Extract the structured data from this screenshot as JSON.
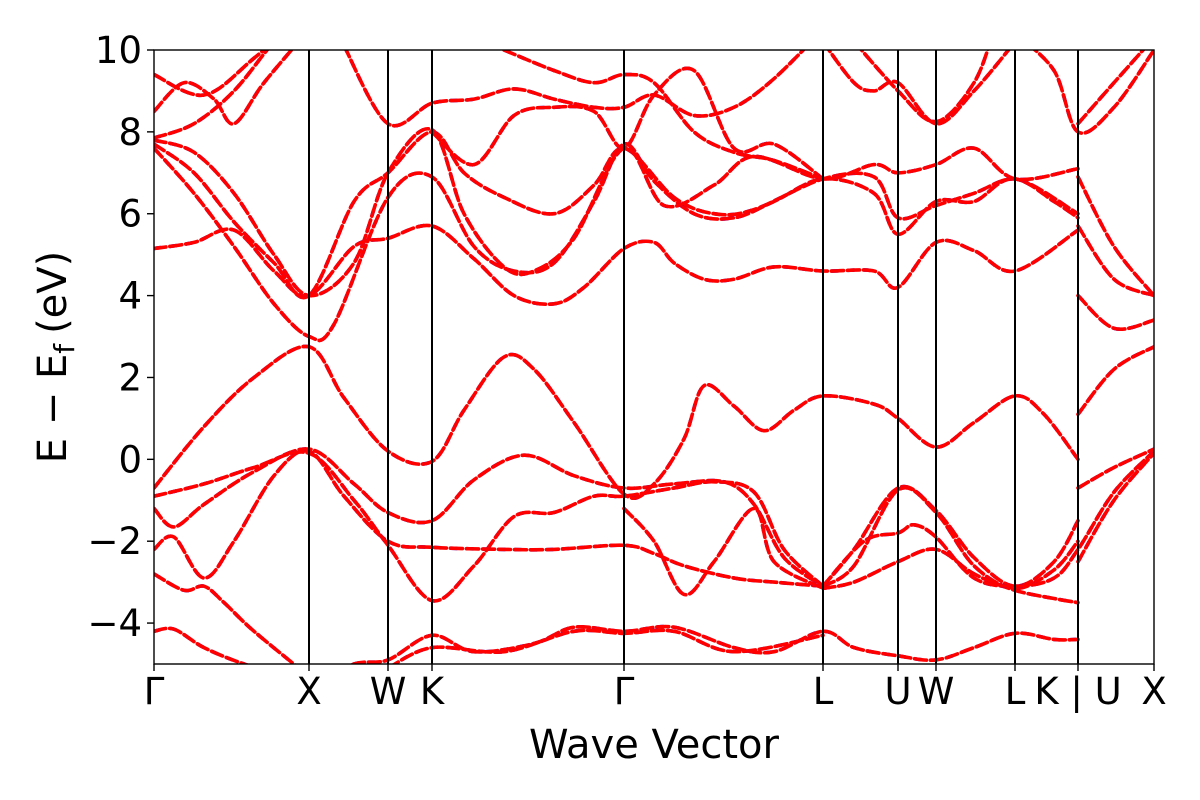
{
  "chart_data": {
    "type": "line",
    "xlabel": "Wave Vector",
    "ylabel_main": "E − E",
    "ylabel_sub": "f",
    "ylabel_unit": "(eV)",
    "ylim": [
      -5,
      10
    ],
    "yticks": [
      {
        "value": -4,
        "label": "−4"
      },
      {
        "value": -2,
        "label": "−2"
      },
      {
        "value": 0,
        "label": "0"
      },
      {
        "value": 2,
        "label": "2"
      },
      {
        "value": 4,
        "label": "4"
      },
      {
        "value": 6,
        "label": "6"
      },
      {
        "value": 8,
        "label": "8"
      },
      {
        "value": 10,
        "label": "10"
      }
    ],
    "xlim": [
      0,
      1
    ],
    "high_symmetry_points": [
      {
        "pos": 0.0,
        "label": "Γ"
      },
      {
        "pos": 0.155,
        "label": "X"
      },
      {
        "pos": 0.234,
        "label": "W"
      },
      {
        "pos": 0.278,
        "label": "K"
      },
      {
        "pos": 0.47,
        "label": "Γ"
      },
      {
        "pos": 0.669,
        "label": "L"
      },
      {
        "pos": 0.744,
        "label": "U"
      },
      {
        "pos": 0.782,
        "label": "W"
      },
      {
        "pos": 0.861,
        "label": "L"
      },
      {
        "pos": 0.924,
        "label": "K | U"
      },
      {
        "pos": 1.0,
        "label": "X"
      }
    ],
    "series_colors": {
      "solid": "#ff0000",
      "dashed": "#0000ff"
    },
    "bands": [
      [
        [
          0,
          -4.2
        ],
        [
          0.02,
          -4.15
        ],
        [
          0.05,
          -4.6
        ],
        [
          0.09,
          -5.0
        ],
        [
          0.155,
          -5.5
        ]
      ],
      [
        [
          0,
          -2.8
        ],
        [
          0.03,
          -3.2
        ],
        [
          0.05,
          -3.1
        ],
        [
          0.07,
          -3.5
        ],
        [
          0.1,
          -4.2
        ],
        [
          0.155,
          -5.3
        ]
      ],
      [
        [
          0,
          -2.2
        ],
        [
          0.02,
          -1.9
        ],
        [
          0.05,
          -2.9
        ],
        [
          0.08,
          -2.0
        ],
        [
          0.12,
          -0.4
        ],
        [
          0.155,
          0.2
        ],
        [
          0.19,
          -0.9
        ],
        [
          0.234,
          -2.0
        ],
        [
          0.278,
          -2.15
        ],
        [
          0.35,
          -2.2
        ],
        [
          0.4,
          -2.2
        ],
        [
          0.47,
          -2.1
        ],
        [
          0.5,
          -2.3
        ],
        [
          0.53,
          -2.6
        ],
        [
          0.58,
          -2.9
        ],
        [
          0.62,
          -3.0
        ],
        [
          0.669,
          -3.1
        ]
      ],
      [
        [
          0,
          -1.2
        ],
        [
          0.02,
          -1.65
        ],
        [
          0.05,
          -1.1
        ],
        [
          0.1,
          -0.3
        ],
        [
          0.155,
          0.25
        ],
        [
          0.2,
          -0.6
        ],
        [
          0.234,
          -1.3
        ],
        [
          0.278,
          -1.5
        ],
        [
          0.32,
          -0.5
        ],
        [
          0.37,
          0.1
        ],
        [
          0.42,
          -0.4
        ],
        [
          0.47,
          -0.7
        ],
        [
          0.52,
          -0.6
        ],
        [
          0.57,
          -0.55
        ],
        [
          0.6,
          -1.1
        ],
        [
          0.63,
          -2.4
        ],
        [
          0.669,
          -3.1
        ]
      ],
      [
        [
          0,
          -0.9
        ],
        [
          0.05,
          -0.6
        ],
        [
          0.1,
          -0.2
        ],
        [
          0.155,
          0.15
        ],
        [
          0.2,
          -1.0
        ],
        [
          0.234,
          -2.1
        ],
        [
          0.278,
          -3.45
        ],
        [
          0.32,
          -2.6
        ],
        [
          0.36,
          -1.4
        ],
        [
          0.4,
          -1.3
        ],
        [
          0.44,
          -0.9
        ],
        [
          0.47,
          -0.9
        ],
        [
          0.52,
          -0.7
        ],
        [
          0.56,
          -0.55
        ],
        [
          0.6,
          -0.8
        ],
        [
          0.63,
          -2.2
        ],
        [
          0.669,
          -3.1
        ]
      ],
      [
        [
          0,
          -0.7
        ],
        [
          0.05,
          0.8
        ],
        [
          0.1,
          2.0
        ],
        [
          0.155,
          2.75
        ],
        [
          0.19,
          1.5
        ],
        [
          0.234,
          0.2
        ],
        [
          0.278,
          -0.05
        ],
        [
          0.31,
          1.2
        ],
        [
          0.35,
          2.5
        ],
        [
          0.38,
          2.2
        ],
        [
          0.42,
          0.9
        ],
        [
          0.47,
          -0.85
        ],
        [
          0.5,
          -0.6
        ],
        [
          0.53,
          0.5
        ],
        [
          0.55,
          1.8
        ],
        [
          0.58,
          1.3
        ],
        [
          0.61,
          0.7
        ],
        [
          0.64,
          1.2
        ],
        [
          0.669,
          1.55
        ],
        [
          0.72,
          1.35
        ],
        [
          0.744,
          1.0
        ],
        [
          0.782,
          0.3
        ],
        [
          0.82,
          0.9
        ],
        [
          0.861,
          1.55
        ],
        [
          0.89,
          1.1
        ],
        [
          0.924,
          0.0
        ]
      ],
      [
        [
          0.924,
          -0.7
        ],
        [
          0.96,
          -0.2
        ],
        [
          1.0,
          0.25
        ]
      ],
      [
        [
          0.924,
          1.1
        ],
        [
          0.96,
          2.2
        ],
        [
          1.0,
          2.75
        ]
      ],
      [
        [
          0,
          5.15
        ],
        [
          0.04,
          5.3
        ],
        [
          0.08,
          5.6
        ],
        [
          0.12,
          4.6
        ],
        [
          0.155,
          4.0
        ],
        [
          0.2,
          5.2
        ],
        [
          0.234,
          5.4
        ],
        [
          0.278,
          5.7
        ],
        [
          0.32,
          4.9
        ],
        [
          0.36,
          4.0
        ],
        [
          0.4,
          3.8
        ],
        [
          0.43,
          4.2
        ],
        [
          0.47,
          5.15
        ],
        [
          0.5,
          5.3
        ],
        [
          0.52,
          4.8
        ],
        [
          0.55,
          4.4
        ],
        [
          0.58,
          4.4
        ],
        [
          0.62,
          4.7
        ],
        [
          0.669,
          4.6
        ],
        [
          0.72,
          4.6
        ],
        [
          0.744,
          4.2
        ],
        [
          0.782,
          5.3
        ],
        [
          0.82,
          5.1
        ],
        [
          0.861,
          4.6
        ],
        [
          0.924,
          5.6
        ]
      ],
      [
        [
          0,
          7.6
        ],
        [
          0.04,
          6.5
        ],
        [
          0.08,
          5.2
        ],
        [
          0.12,
          3.8
        ],
        [
          0.155,
          3.0
        ],
        [
          0.18,
          3.3
        ],
        [
          0.234,
          6.4
        ],
        [
          0.278,
          6.9
        ],
        [
          0.32,
          5.2
        ],
        [
          0.36,
          4.6
        ],
        [
          0.4,
          4.8
        ],
        [
          0.44,
          6.3
        ],
        [
          0.47,
          7.7
        ],
        [
          0.5,
          6.8
        ],
        [
          0.54,
          6.0
        ],
        [
          0.58,
          5.9
        ],
        [
          0.62,
          6.3
        ],
        [
          0.669,
          6.85
        ],
        [
          0.72,
          6.5
        ],
        [
          0.744,
          5.5
        ],
        [
          0.782,
          6.3
        ],
        [
          0.82,
          6.3
        ],
        [
          0.861,
          6.85
        ],
        [
          0.924,
          6.0
        ]
      ],
      [
        [
          0.924,
          4.0
        ],
        [
          0.96,
          3.2
        ],
        [
          1.0,
          3.4
        ]
      ],
      [
        [
          0,
          7.7
        ],
        [
          0.04,
          7.0
        ],
        [
          0.08,
          5.8
        ],
        [
          0.12,
          4.8
        ],
        [
          0.155,
          4.0
        ],
        [
          0.2,
          6.3
        ],
        [
          0.234,
          7.0
        ],
        [
          0.278,
          8.0
        ],
        [
          0.31,
          7.0
        ],
        [
          0.35,
          6.4
        ],
        [
          0.4,
          6.0
        ],
        [
          0.44,
          6.7
        ],
        [
          0.47,
          7.6
        ],
        [
          0.52,
          6.4
        ],
        [
          0.56,
          6.0
        ],
        [
          0.6,
          6.1
        ],
        [
          0.669,
          6.85
        ],
        [
          0.72,
          6.9
        ],
        [
          0.744,
          5.9
        ],
        [
          0.782,
          6.2
        ],
        [
          0.82,
          6.5
        ],
        [
          0.861,
          6.85
        ],
        [
          0.9,
          6.3
        ],
        [
          0.924,
          5.9
        ]
      ],
      [
        [
          0.924,
          5.7
        ],
        [
          0.96,
          4.4
        ],
        [
          1.0,
          4.0
        ]
      ],
      [
        [
          0,
          7.8
        ],
        [
          0.04,
          7.5
        ],
        [
          0.08,
          6.5
        ],
        [
          0.12,
          5.0
        ],
        [
          0.155,
          4.0
        ],
        [
          0.2,
          4.8
        ],
        [
          0.234,
          7.0
        ],
        [
          0.278,
          8.05
        ],
        [
          0.31,
          6.0
        ],
        [
          0.35,
          4.7
        ],
        [
          0.38,
          4.6
        ],
        [
          0.42,
          5.4
        ],
        [
          0.47,
          7.6
        ],
        [
          0.51,
          6.2
        ],
        [
          0.56,
          6.7
        ],
        [
          0.6,
          7.4
        ],
        [
          0.669,
          6.85
        ],
        [
          0.72,
          7.2
        ],
        [
          0.744,
          7.0
        ],
        [
          0.782,
          7.2
        ],
        [
          0.82,
          7.6
        ],
        [
          0.861,
          6.85
        ],
        [
          0.924,
          7.1
        ]
      ],
      [
        [
          0.924,
          6.9
        ],
        [
          0.96,
          5.2
        ],
        [
          1.0,
          4.0
        ]
      ],
      [
        [
          0,
          7.85
        ],
        [
          0.04,
          8.2
        ],
        [
          0.08,
          9.0
        ],
        [
          0.12,
          10.2
        ],
        [
          0.155,
          11.0
        ]
      ],
      [
        [
          0,
          8.5
        ],
        [
          0.03,
          9.2
        ],
        [
          0.06,
          8.8
        ],
        [
          0.08,
          8.2
        ],
        [
          0.11,
          9.2
        ],
        [
          0.155,
          10.5
        ]
      ],
      [
        [
          0,
          9.4
        ],
        [
          0.05,
          8.9
        ],
        [
          0.1,
          9.8
        ],
        [
          0.155,
          11
        ]
      ],
      [
        [
          0.19,
          10.1
        ],
        [
          0.234,
          8.2
        ],
        [
          0.278,
          8.7
        ],
        [
          0.32,
          8.8
        ],
        [
          0.36,
          9.05
        ],
        [
          0.4,
          8.8
        ],
        [
          0.44,
          8.6
        ],
        [
          0.47,
          8.6
        ],
        [
          0.5,
          8.9
        ],
        [
          0.54,
          8.4
        ],
        [
          0.58,
          8.6
        ],
        [
          0.62,
          9.3
        ],
        [
          0.669,
          10.5
        ]
      ],
      [
        [
          0.278,
          8.0
        ],
        [
          0.32,
          7.2
        ],
        [
          0.36,
          8.4
        ],
        [
          0.4,
          8.6
        ],
        [
          0.44,
          8.5
        ],
        [
          0.47,
          7.6
        ],
        [
          0.5,
          8.9
        ],
        [
          0.54,
          9.5
        ],
        [
          0.58,
          7.6
        ],
        [
          0.62,
          7.7
        ],
        [
          0.669,
          6.85
        ]
      ],
      [
        [
          0.35,
          10.0
        ],
        [
          0.4,
          9.5
        ],
        [
          0.44,
          9.2
        ],
        [
          0.47,
          9.4
        ],
        [
          0.5,
          9.2
        ],
        [
          0.54,
          8.0
        ],
        [
          0.58,
          7.5
        ],
        [
          0.62,
          7.3
        ],
        [
          0.669,
          6.85
        ]
      ],
      [
        [
          0.669,
          10.2
        ],
        [
          0.7,
          9.2
        ],
        [
          0.72,
          9.0
        ],
        [
          0.744,
          9.2
        ],
        [
          0.782,
          8.2
        ],
        [
          0.82,
          9.0
        ],
        [
          0.861,
          10.2
        ]
      ],
      [
        [
          0.69,
          10.5
        ],
        [
          0.744,
          9.0
        ],
        [
          0.782,
          8.25
        ],
        [
          0.82,
          9.2
        ],
        [
          0.84,
          10.5
        ]
      ],
      [
        [
          0.861,
          10.4
        ],
        [
          0.9,
          9.5
        ],
        [
          0.924,
          8.0
        ],
        [
          0.96,
          8.6
        ],
        [
          1.0,
          10.0
        ]
      ],
      [
        [
          0.924,
          8.2
        ],
        [
          0.96,
          9.2
        ],
        [
          1.0,
          10.3
        ]
      ],
      [
        [
          0.155,
          -5.5
        ],
        [
          0.2,
          -5.0
        ],
        [
          0.234,
          -4.9
        ],
        [
          0.278,
          -4.3
        ],
        [
          0.32,
          -4.7
        ],
        [
          0.38,
          -4.5
        ],
        [
          0.42,
          -4.1
        ],
        [
          0.47,
          -4.2
        ],
        [
          0.52,
          -4.1
        ],
        [
          0.58,
          -4.6
        ],
        [
          0.62,
          -4.7
        ],
        [
          0.669,
          -4.2
        ],
        [
          0.7,
          -4.6
        ],
        [
          0.744,
          -4.8
        ],
        [
          0.782,
          -4.9
        ],
        [
          0.82,
          -4.6
        ],
        [
          0.861,
          -4.25
        ],
        [
          0.9,
          -4.4
        ],
        [
          0.924,
          -4.4
        ]
      ],
      [
        [
          0.234,
          -5.1
        ],
        [
          0.278,
          -4.6
        ],
        [
          0.35,
          -4.7
        ],
        [
          0.42,
          -4.2
        ],
        [
          0.47,
          -4.25
        ],
        [
          0.52,
          -4.2
        ],
        [
          0.58,
          -4.7
        ],
        [
          0.669,
          -4.3
        ]
      ],
      [
        [
          0.669,
          -3.1
        ],
        [
          0.7,
          -2.2
        ],
        [
          0.744,
          -0.7
        ],
        [
          0.782,
          -1.25
        ],
        [
          0.82,
          -2.4
        ],
        [
          0.861,
          -3.1
        ],
        [
          0.9,
          -2.5
        ],
        [
          0.924,
          -1.5
        ]
      ],
      [
        [
          0.669,
          -3.1
        ],
        [
          0.7,
          -2.6
        ],
        [
          0.744,
          -0.75
        ],
        [
          0.782,
          -1.3
        ],
        [
          0.82,
          -2.6
        ],
        [
          0.861,
          -3.15
        ],
        [
          0.9,
          -2.7
        ],
        [
          0.924,
          -2.0
        ]
      ],
      [
        [
          0.669,
          -3.15
        ],
        [
          0.7,
          -3.0
        ],
        [
          0.744,
          -2.5
        ],
        [
          0.782,
          -2.2
        ],
        [
          0.82,
          -2.8
        ],
        [
          0.861,
          -3.2
        ],
        [
          0.9,
          -3.4
        ],
        [
          0.924,
          -3.5
        ]
      ],
      [
        [
          0.669,
          -3.1
        ],
        [
          0.71,
          -2.0
        ],
        [
          0.744,
          -1.8
        ],
        [
          0.76,
          -1.6
        ],
        [
          0.782,
          -1.9
        ],
        [
          0.82,
          -2.9
        ],
        [
          0.861,
          -3.1
        ],
        [
          0.9,
          -2.9
        ],
        [
          0.924,
          -2.2
        ],
        [
          0.96,
          -0.8
        ],
        [
          1.0,
          0.2
        ]
      ],
      [
        [
          0.924,
          -2.5
        ],
        [
          0.96,
          -1.0
        ],
        [
          1.0,
          0.15
        ]
      ],
      [
        [
          0.47,
          -1.2
        ],
        [
          0.5,
          -2.0
        ],
        [
          0.53,
          -3.3
        ],
        [
          0.56,
          -2.5
        ],
        [
          0.6,
          -1.2
        ],
        [
          0.62,
          -2.5
        ],
        [
          0.669,
          -3.15
        ]
      ]
    ]
  }
}
